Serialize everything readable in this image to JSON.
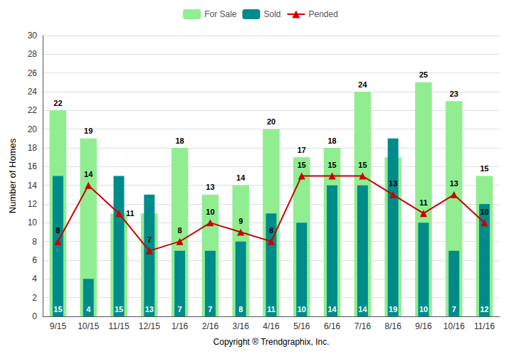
{
  "chart_data": {
    "type": "bar",
    "categories": [
      "9/15",
      "10/15",
      "11/15",
      "12/15",
      "1/16",
      "2/16",
      "3/16",
      "4/16",
      "5/16",
      "6/16",
      "7/16",
      "8/16",
      "9/16",
      "10/16",
      "11/16"
    ],
    "series": [
      {
        "name": "For Sale",
        "type": "bar",
        "color": "#90EE90",
        "values": [
          22,
          19,
          11,
          11,
          18,
          13,
          14,
          20,
          17,
          18,
          24,
          17,
          25,
          23,
          15
        ]
      },
      {
        "name": "Sold",
        "type": "bar",
        "color": "#008B8B",
        "values": [
          15,
          4,
          15,
          13,
          7,
          7,
          8,
          11,
          10,
          14,
          14,
          19,
          10,
          7,
          12
        ]
      },
      {
        "name": "Pended",
        "type": "line",
        "color": "#CC0000",
        "marker": "triangle",
        "values": [
          8,
          14,
          11,
          7,
          8,
          10,
          9,
          8,
          15,
          15,
          15,
          13,
          11,
          13,
          10
        ]
      }
    ],
    "ylabel": "Number of Homes",
    "xlabel": "Copyright ® Trendgraphix, Inc.",
    "ylim": [
      0,
      30
    ],
    "yticks": [
      0,
      2,
      4,
      6,
      8,
      10,
      12,
      14,
      16,
      18,
      20,
      22,
      24,
      26,
      28,
      30
    ],
    "grid": true,
    "legend": "top",
    "data_labels": true
  }
}
